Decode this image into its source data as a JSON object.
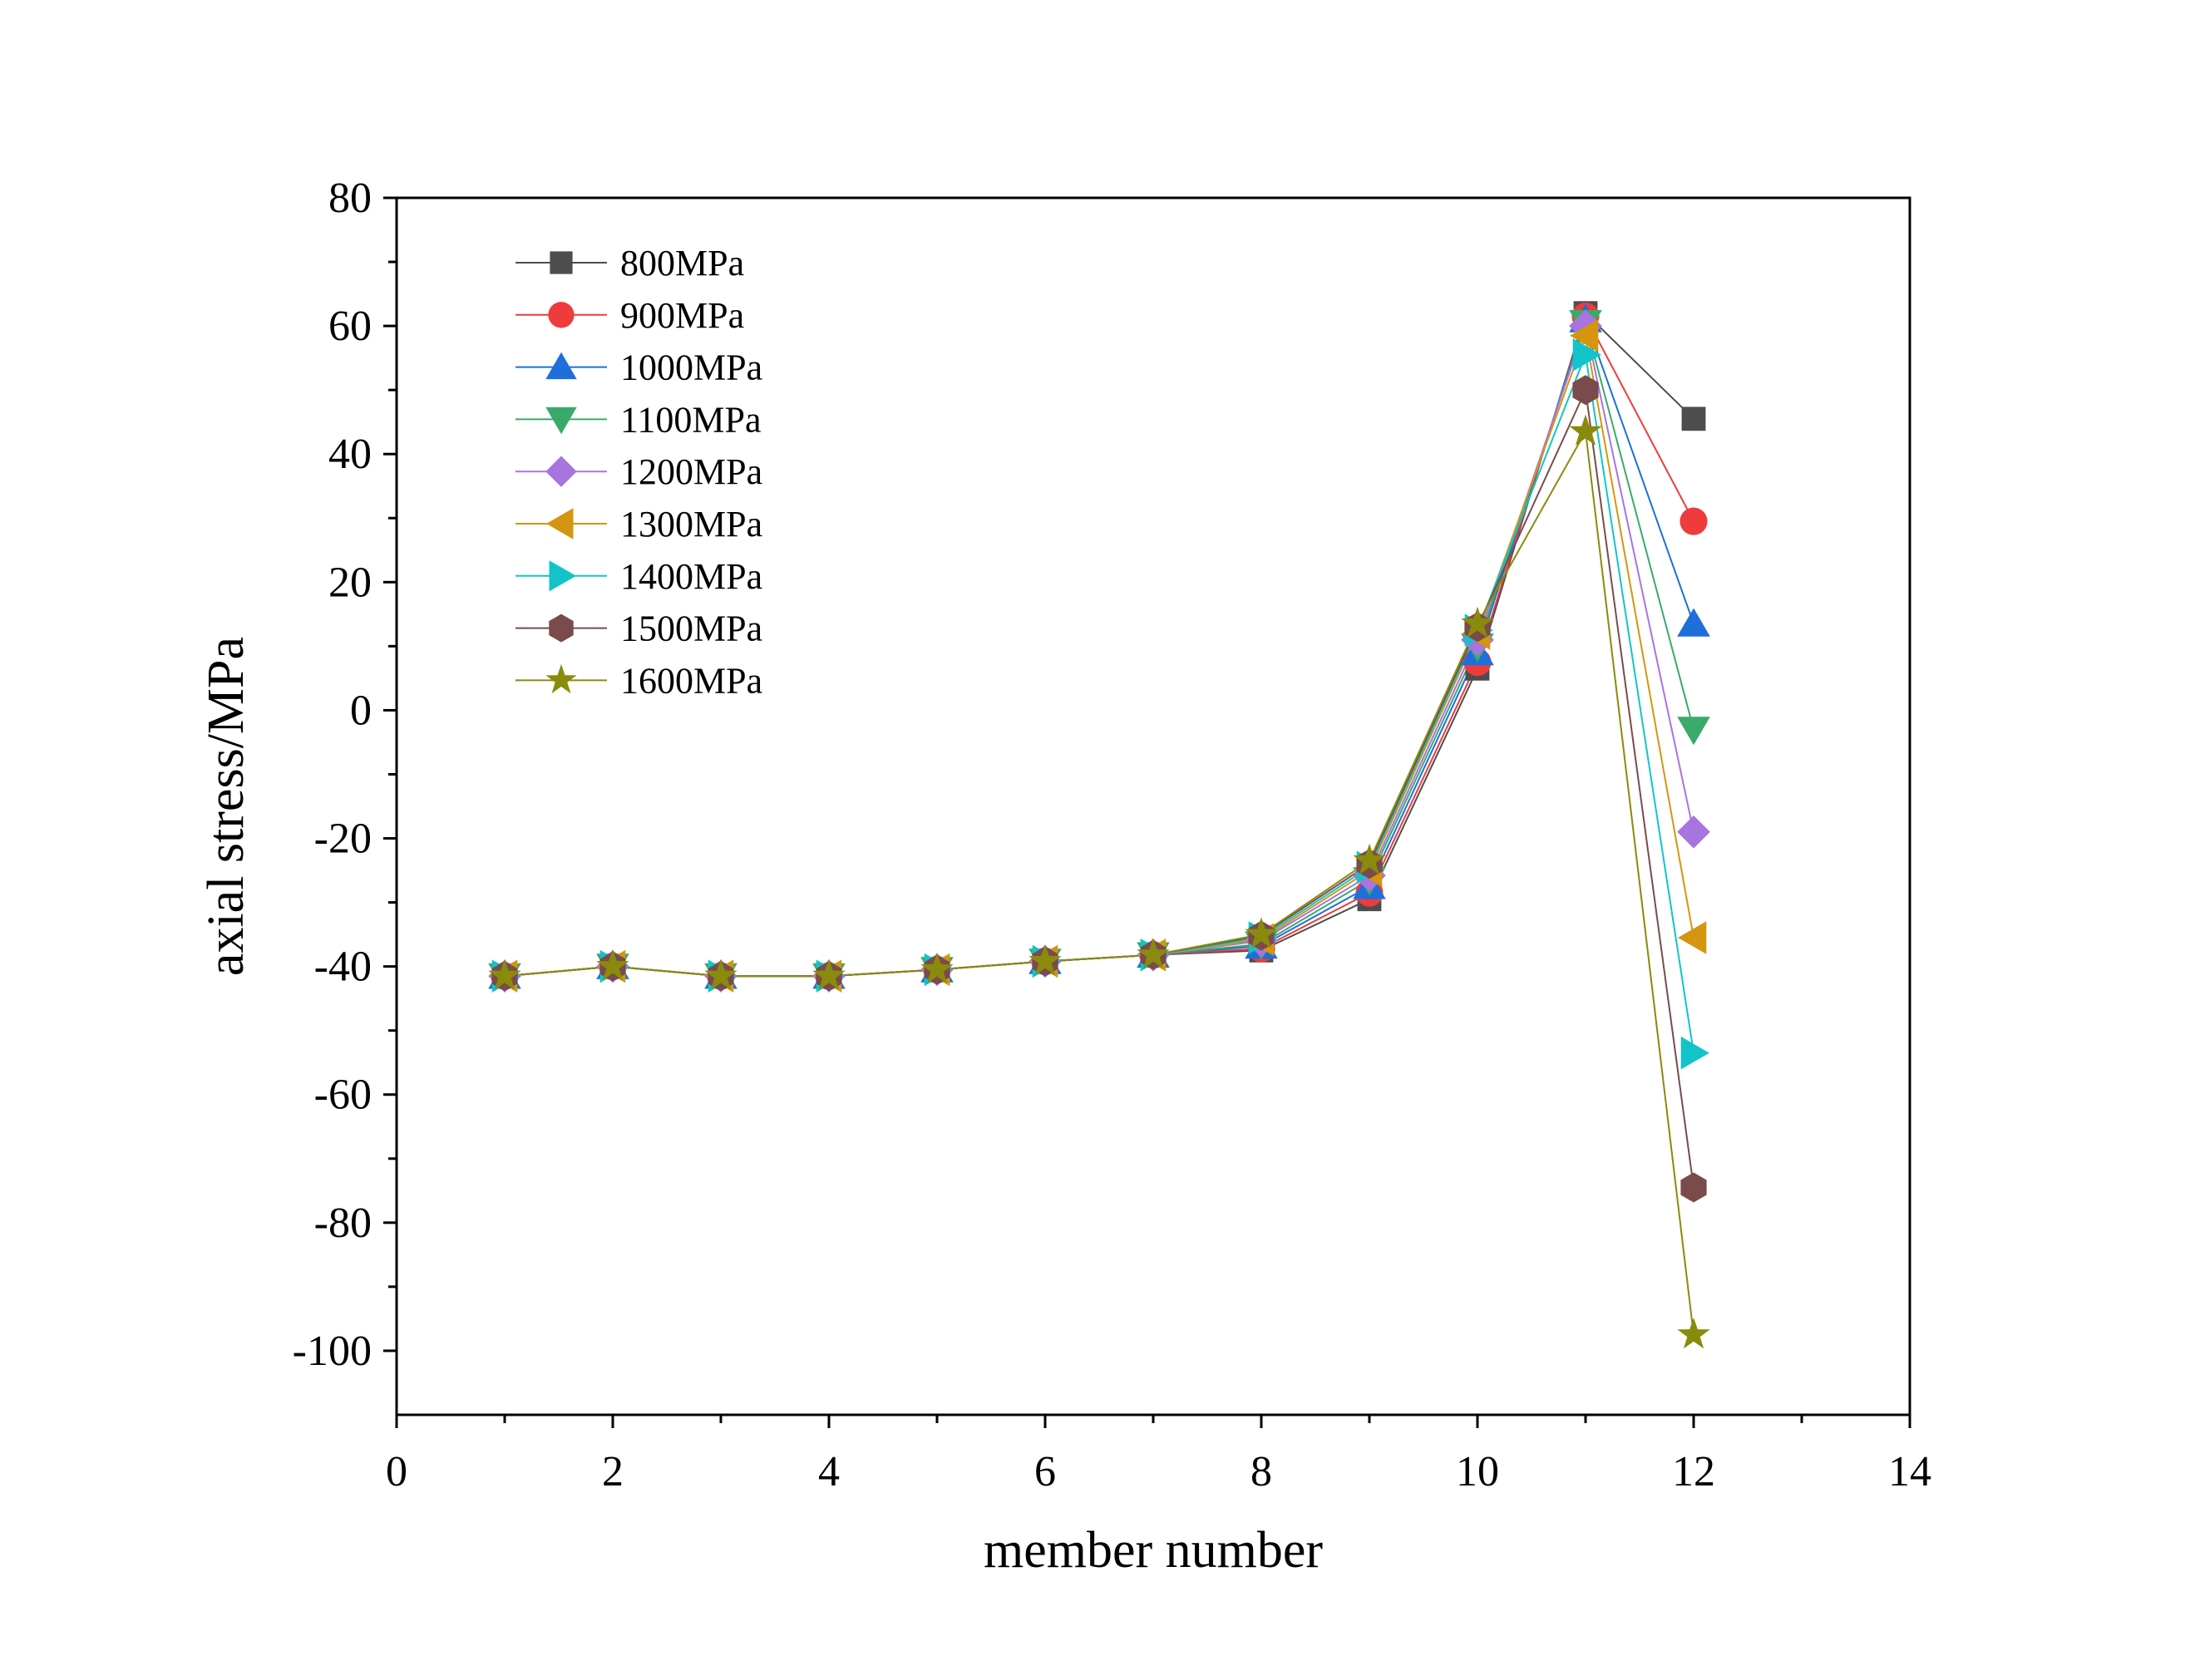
{
  "chart_data": {
    "type": "line",
    "title": "",
    "xlabel": "member number",
    "ylabel": "axial stress/MPa",
    "xlim": [
      0,
      14
    ],
    "ylim": [
      -110,
      80
    ],
    "xticks": [
      0,
      2,
      4,
      6,
      8,
      10,
      12,
      14
    ],
    "yticks": [
      -100,
      -80,
      -60,
      -40,
      -20,
      0,
      20,
      40,
      60,
      80
    ],
    "grid": false,
    "legend_position": "top-left",
    "x": [
      1,
      2,
      3,
      4,
      5,
      6,
      7,
      8,
      9,
      10,
      11,
      12
    ],
    "series": [
      {
        "name": "800MPa",
        "color": "#4d4d4d",
        "marker": "square",
        "values": [
          -41.5,
          -40,
          -41.5,
          -41.5,
          -40.5,
          -39.2,
          -38.2,
          -37.5,
          -29.5,
          6.5,
          62,
          45.5
        ]
      },
      {
        "name": "900MPa",
        "color": "#ee3b3b",
        "marker": "circle",
        "values": [
          -41.5,
          -40,
          -41.5,
          -41.5,
          -40.5,
          -39.2,
          -38.2,
          -37.2,
          -28.5,
          7.5,
          61.5,
          29.5
        ]
      },
      {
        "name": "1000MPa",
        "color": "#1e6fd9",
        "marker": "triangle-up",
        "values": [
          -41.5,
          -40,
          -41.5,
          -41.5,
          -40.5,
          -39.2,
          -38.2,
          -36.8,
          -27.5,
          9,
          61,
          13.5
        ]
      },
      {
        "name": "1100MPa",
        "color": "#3aaa6a",
        "marker": "triangle-down",
        "values": [
          -41.5,
          -40,
          -41.5,
          -41.5,
          -40.5,
          -39.2,
          -38.2,
          -36.5,
          -26.5,
          10,
          60.5,
          -3
        ]
      },
      {
        "name": "1200MPa",
        "color": "#a874e0",
        "marker": "diamond",
        "values": [
          -41.5,
          -40,
          -41.5,
          -41.5,
          -40.5,
          -39.2,
          -38.2,
          -36.0,
          -25.8,
          11,
          60,
          -19
        ]
      },
      {
        "name": "1300MPa",
        "color": "#d4960e",
        "marker": "triangle-left",
        "values": [
          -41.5,
          -40,
          -41.5,
          -41.5,
          -40.5,
          -39.2,
          -38.2,
          -35.8,
          -25,
          12,
          58.5,
          -35.5
        ]
      },
      {
        "name": "1400MPa",
        "color": "#12c4c9",
        "marker": "triangle-right",
        "values": [
          -41.5,
          -40,
          -41.5,
          -41.5,
          -40.5,
          -39.2,
          -38.2,
          -35.5,
          -24.5,
          12.5,
          55.5,
          -53.5
        ]
      },
      {
        "name": "1500MPa",
        "color": "#7a4b4b",
        "marker": "hexagon",
        "values": [
          -41.5,
          -40,
          -41.5,
          -41.5,
          -40.5,
          -39.2,
          -38.2,
          -35.2,
          -24,
          13,
          50,
          -74.5
        ]
      },
      {
        "name": "1600MPa",
        "color": "#8a8a0c",
        "marker": "star",
        "values": [
          -41.5,
          -40,
          -41.5,
          -41.5,
          -40.5,
          -39.2,
          -38.2,
          -35.0,
          -23.5,
          13.5,
          43.5,
          -97.5
        ]
      }
    ]
  }
}
